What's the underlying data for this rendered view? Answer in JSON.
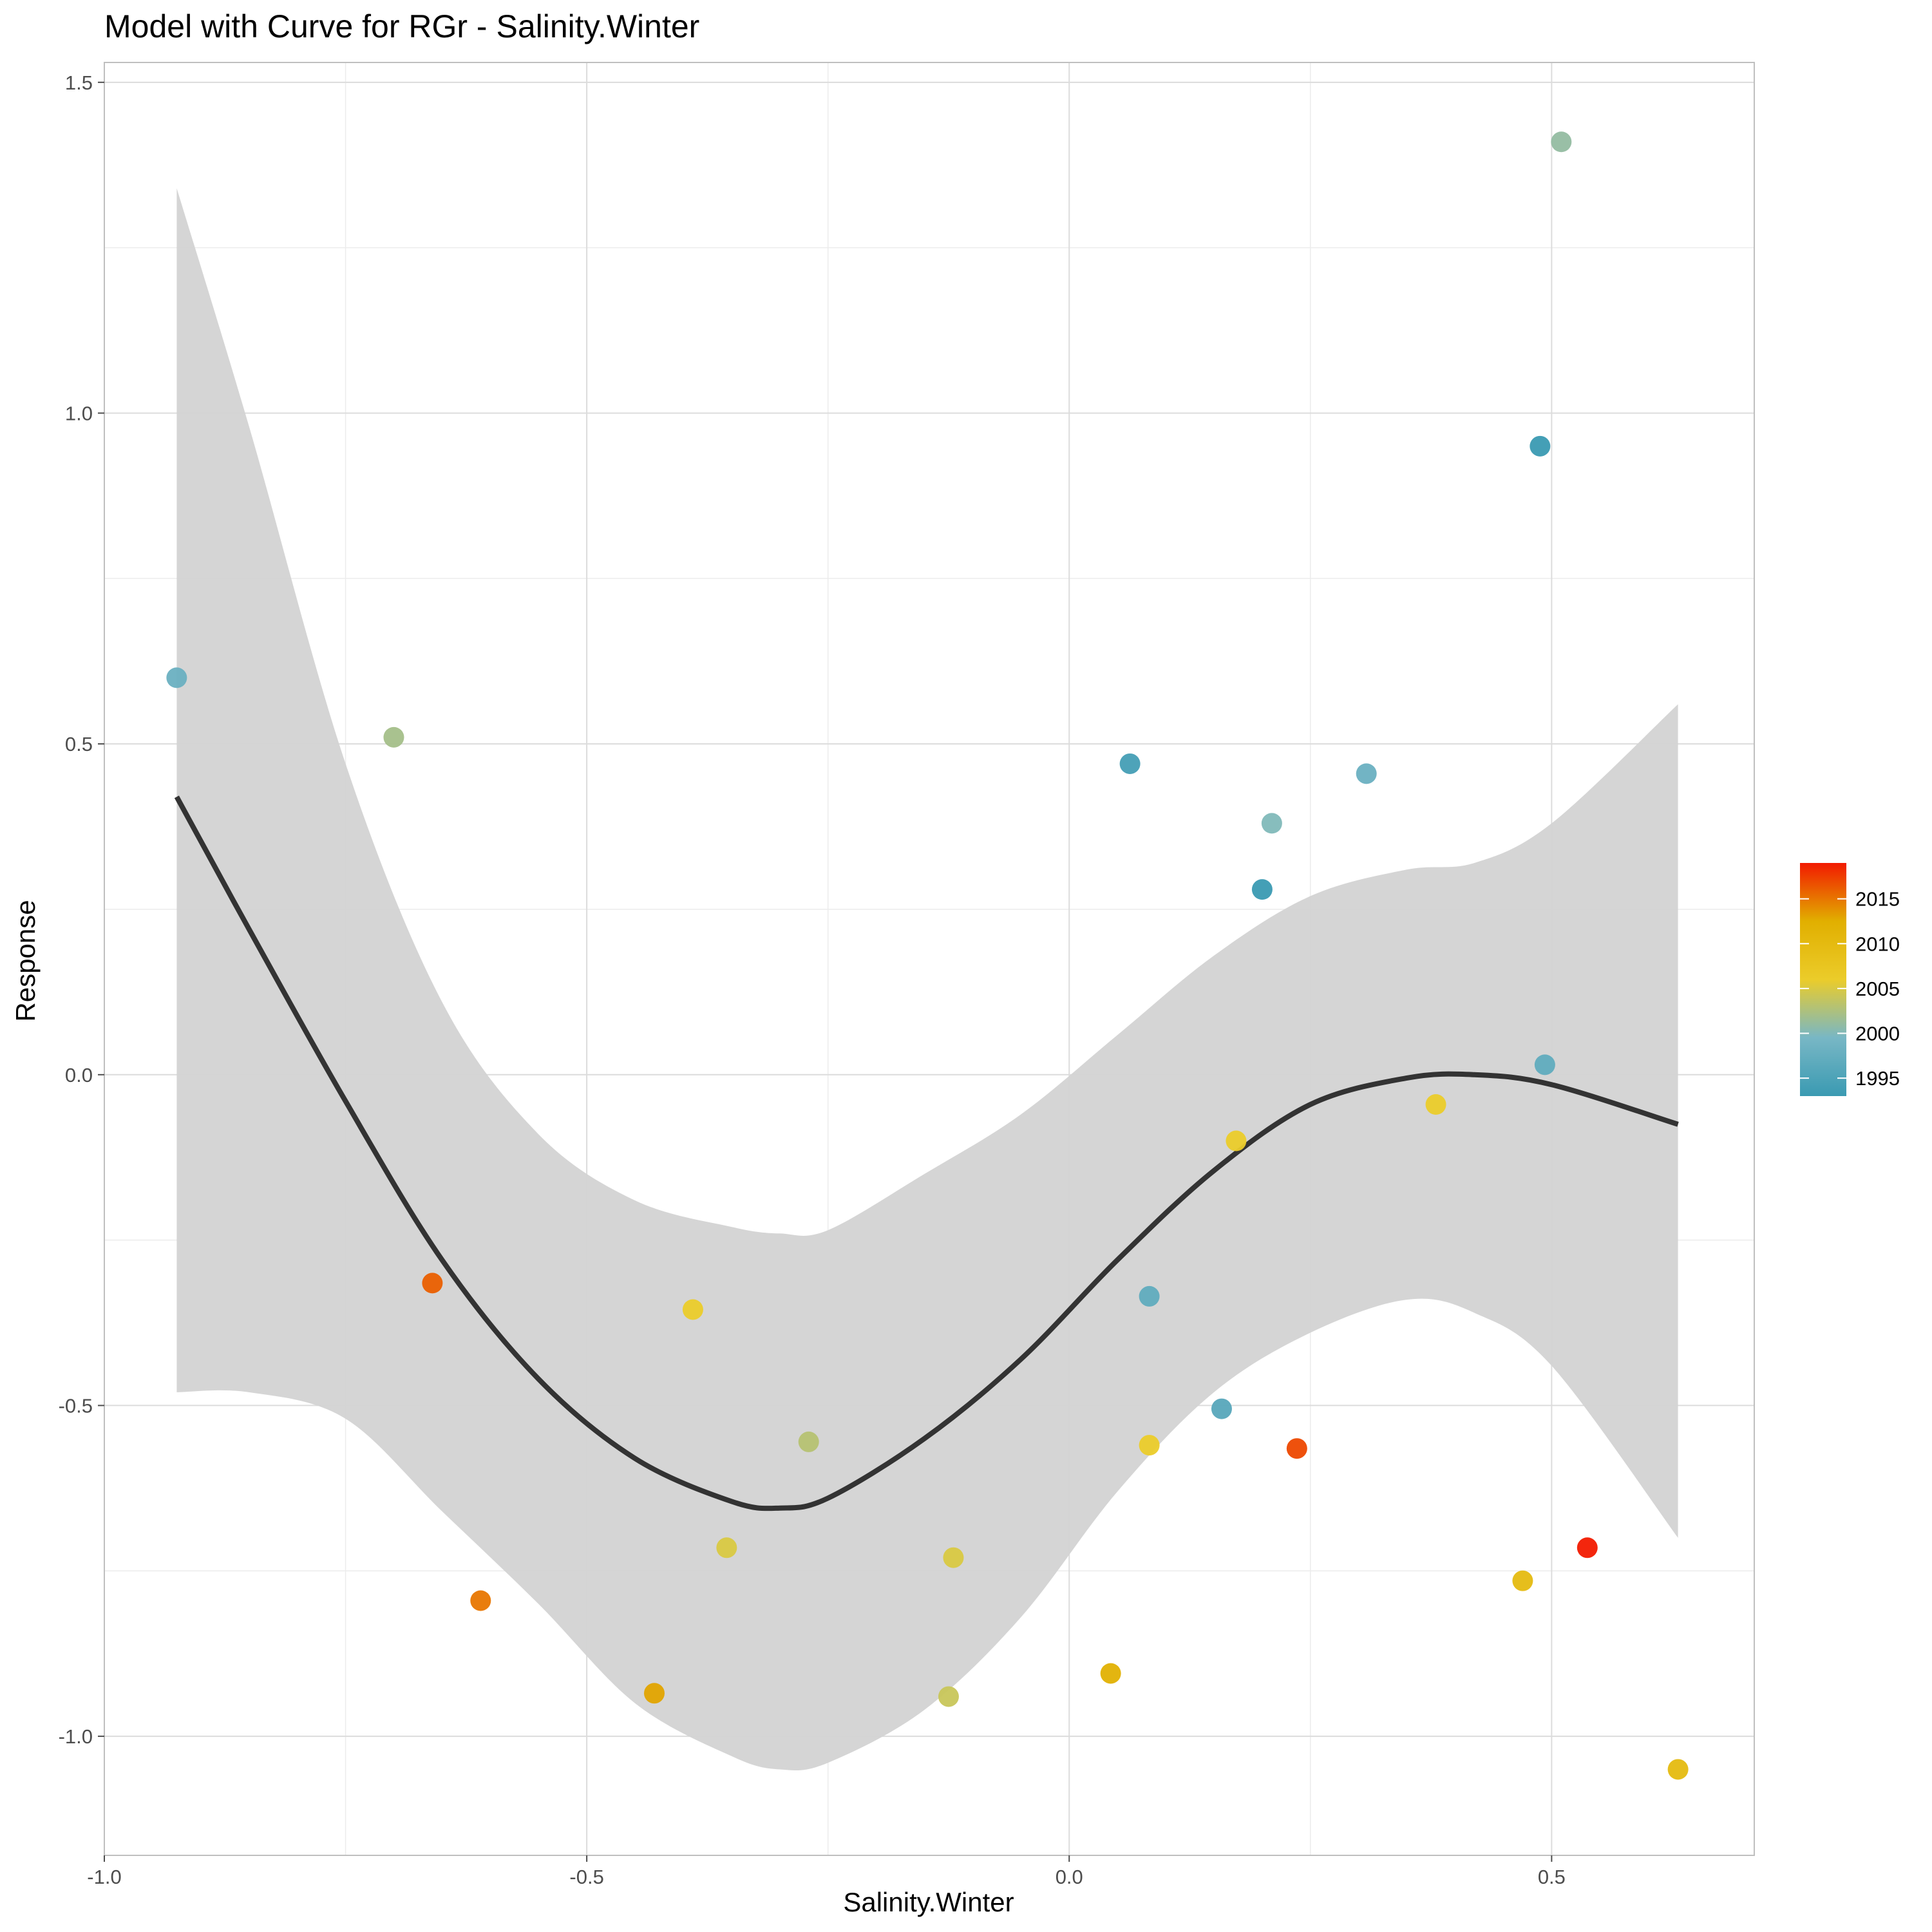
{
  "chart_data": {
    "type": "scatter",
    "title": "Model with Curve for RGr - Salinity.Winter",
    "xlabel": "Salinity.Winter",
    "ylabel": "Response",
    "xlim": [
      -1.0,
      0.71
    ],
    "ylim": [
      -1.18,
      1.53
    ],
    "x_ticks": [
      -1.0,
      -0.5,
      0.0,
      0.5
    ],
    "x_tick_labels": [
      "-1.0",
      "-0.5",
      "0.0",
      "0.5"
    ],
    "y_ticks": [
      -1.0,
      -0.5,
      0.0,
      0.5,
      1.0,
      1.5
    ],
    "y_tick_labels": [
      "-1.0",
      "-0.5",
      "0.0",
      "0.5",
      "1.0",
      "1.5"
    ],
    "grid": true,
    "legend": {
      "position": "right",
      "type": "colorbar",
      "range": [
        1993,
        2019
      ],
      "ticks": [
        1995,
        2000,
        2005,
        2010,
        2015
      ],
      "tick_labels": [
        "1995",
        "2000",
        "2005",
        "2010",
        "2015"
      ],
      "colors": [
        "#3a9ab2",
        "#78b7c5",
        "#ebcc2a",
        "#e1af00",
        "#f21a00"
      ]
    },
    "points": [
      {
        "x": -0.925,
        "y": 0.6,
        "year": 1998
      },
      {
        "x": -0.7,
        "y": 0.51,
        "year": 2002
      },
      {
        "x": -0.66,
        "y": -0.315,
        "year": 2016
      },
      {
        "x": -0.61,
        "y": -0.795,
        "year": 2015
      },
      {
        "x": -0.43,
        "y": -0.935,
        "year": 2013
      },
      {
        "x": -0.39,
        "y": -0.355,
        "year": 2006
      },
      {
        "x": -0.355,
        "y": -0.715,
        "year": 2005
      },
      {
        "x": -0.27,
        "y": -0.555,
        "year": 2003
      },
      {
        "x": -0.125,
        "y": -0.94,
        "year": 2004
      },
      {
        "x": -0.12,
        "y": -0.73,
        "year": 2005
      },
      {
        "x": 0.043,
        "y": -0.905,
        "year": 2012
      },
      {
        "x": 0.063,
        "y": 0.47,
        "year": 1994
      },
      {
        "x": 0.083,
        "y": -0.335,
        "year": 1997
      },
      {
        "x": 0.083,
        "y": -0.56,
        "year": 2006
      },
      {
        "x": 0.158,
        "y": -0.505,
        "year": 1996
      },
      {
        "x": 0.173,
        "y": -0.1,
        "year": 2006
      },
      {
        "x": 0.2,
        "y": 0.28,
        "year": 1993
      },
      {
        "x": 0.21,
        "y": 0.38,
        "year": 2000
      },
      {
        "x": 0.236,
        "y": -0.565,
        "year": 2017
      },
      {
        "x": 0.308,
        "y": 0.455,
        "year": 1998
      },
      {
        "x": 0.38,
        "y": -0.045,
        "year": 2006
      },
      {
        "x": 0.47,
        "y": -0.765,
        "year": 2010
      },
      {
        "x": 0.488,
        "y": 0.95,
        "year": 1993
      },
      {
        "x": 0.493,
        "y": 0.015,
        "year": 1997
      },
      {
        "x": 0.51,
        "y": 1.41,
        "year": 2001
      },
      {
        "x": 0.537,
        "y": -0.715,
        "year": 2019
      },
      {
        "x": 0.631,
        "y": -1.05,
        "year": 2010
      }
    ],
    "fit_curve": {
      "x": [
        -0.925,
        -0.85,
        -0.75,
        -0.65,
        -0.55,
        -0.45,
        -0.35,
        -0.3,
        -0.25,
        -0.15,
        -0.05,
        0.05,
        0.15,
        0.25,
        0.35,
        0.42,
        0.5,
        0.631
      ],
      "y": [
        0.42,
        0.22,
        -0.04,
        -0.28,
        -0.46,
        -0.58,
        -0.645,
        -0.655,
        -0.64,
        -0.55,
        -0.43,
        -0.28,
        -0.145,
        -0.045,
        -0.005,
        0.0,
        -0.015,
        -0.075
      ],
      "lower": [
        -0.48,
        -0.48,
        -0.52,
        -0.66,
        -0.8,
        -0.95,
        -1.03,
        -1.05,
        -1.04,
        -0.96,
        -0.82,
        -0.63,
        -0.48,
        -0.39,
        -0.34,
        -0.36,
        -0.44,
        -0.7
      ],
      "upper": [
        1.34,
        0.98,
        0.47,
        0.11,
        -0.09,
        -0.19,
        -0.23,
        -0.24,
        -0.235,
        -0.15,
        -0.06,
        0.06,
        0.18,
        0.27,
        0.31,
        0.32,
        0.38,
        0.56
      ]
    },
    "colors": {
      "ribbon": "#d3d3d3",
      "line": "#333333",
      "grid_major": "#dcdcdc",
      "grid_minor": "#ececec",
      "panel_border": "#bfbfbf"
    }
  }
}
